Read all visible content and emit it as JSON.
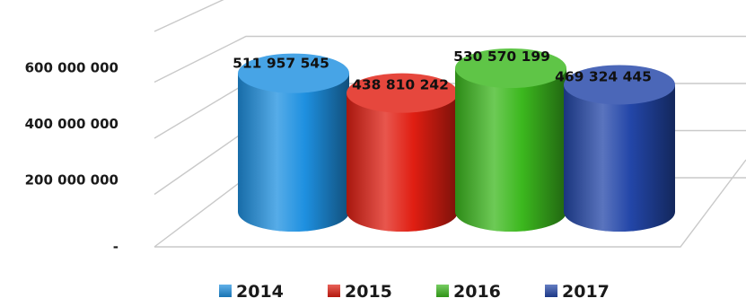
{
  "chart_data": {
    "type": "bar",
    "style": "3d-cylinder",
    "categories": [
      "2014",
      "2015",
      "2016",
      "2017"
    ],
    "values": [
      511957545,
      438810242,
      530570199,
      469324445
    ],
    "value_labels": [
      "511 957 545",
      "438 810 242",
      "530 570 199",
      "469 324 445"
    ],
    "colors": [
      "#1e90e0",
      "#e01e12",
      "#3cb81e",
      "#2346a8"
    ],
    "y_ticks": [
      0,
      200000000,
      400000000,
      600000000
    ],
    "y_tick_labels": [
      "-",
      "200 000 000",
      "400 000 000",
      "600 000 000"
    ],
    "ylim": [
      0,
      800000000
    ],
    "legend_position": "bottom",
    "legend": [
      "2014",
      "2015",
      "2016",
      "2017"
    ],
    "grid": true
  }
}
